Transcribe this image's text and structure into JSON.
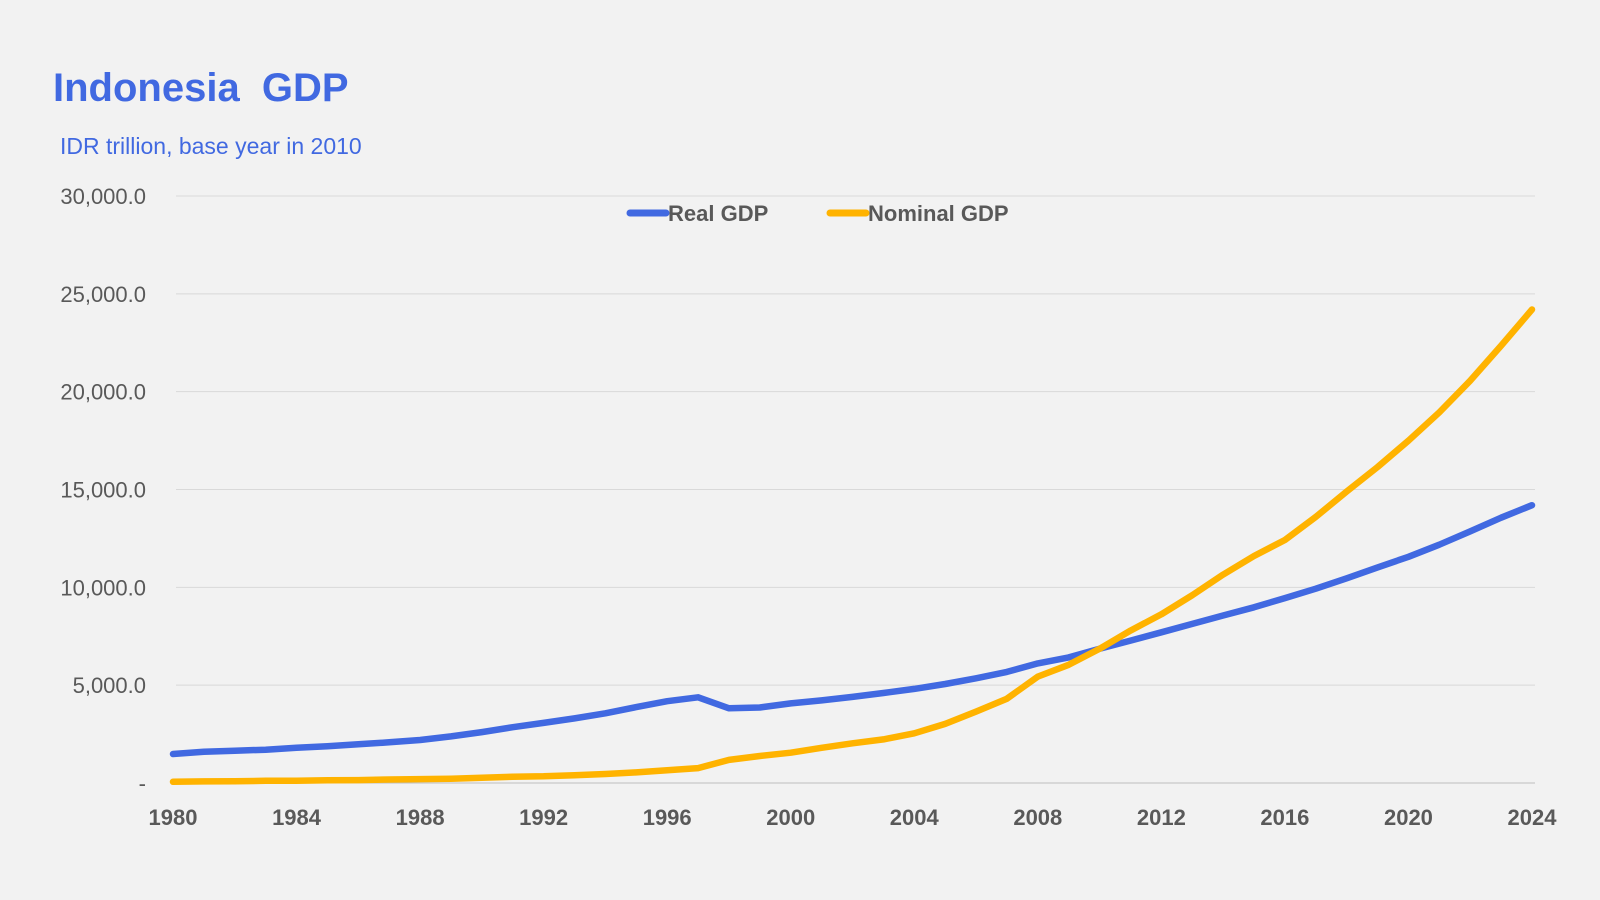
{
  "chart_data": {
    "type": "line",
    "title": "Indonesia  GDP",
    "subtitle": "IDR trillion, base year in 2010",
    "x": [
      1980,
      1981,
      1982,
      1983,
      1984,
      1985,
      1986,
      1987,
      1988,
      1989,
      1990,
      1991,
      1992,
      1993,
      1994,
      1995,
      1996,
      1997,
      1998,
      1999,
      2000,
      2001,
      2002,
      2003,
      2004,
      2005,
      2006,
      2007,
      2008,
      2009,
      2010,
      2011,
      2012,
      2013,
      2014,
      2015,
      2016,
      2017,
      2018,
      2019,
      2020,
      2021,
      2022,
      2023,
      2024
    ],
    "xticks": [
      "1980",
      "1984",
      "1988",
      "1992",
      "1996",
      "2000",
      "2004",
      "2008",
      "2012",
      "2016",
      "2020",
      "2024"
    ],
    "yticks": [
      "-",
      "5,000.0",
      "10,000.0",
      "15,000.0",
      "20,000.0",
      "25,000.0",
      "30,000.0"
    ],
    "ylim": [
      0,
      30000
    ],
    "grid": true,
    "legend_position": "top-center",
    "series": [
      {
        "name": "Real GDP",
        "color": "#4169e1",
        "values": [
          1480,
          1600,
          1650,
          1700,
          1800,
          1880,
          1980,
          2080,
          2200,
          2380,
          2600,
          2850,
          3070,
          3300,
          3560,
          3880,
          4180,
          4380,
          3820,
          3860,
          4070,
          4220,
          4400,
          4600,
          4810,
          5060,
          5350,
          5680,
          6110,
          6420,
          6860,
          7280,
          7700,
          8130,
          8560,
          8980,
          9450,
          9930,
          10460,
          11020,
          11560,
          12180,
          12860,
          13560,
          14200
        ]
      },
      {
        "name": "Nominal GDP",
        "color": "#ffb300",
        "values": [
          60,
          80,
          90,
          110,
          120,
          140,
          150,
          180,
          200,
          220,
          270,
          320,
          340,
          400,
          460,
          540,
          650,
          760,
          1180,
          1380,
          1550,
          1800,
          2030,
          2230,
          2540,
          3020,
          3650,
          4310,
          5440,
          6040,
          6860,
          7790,
          8620,
          9600,
          10650,
          11600,
          12420,
          13600,
          14900,
          16150,
          17500,
          18940,
          20560,
          22350,
          24200
        ]
      }
    ]
  }
}
